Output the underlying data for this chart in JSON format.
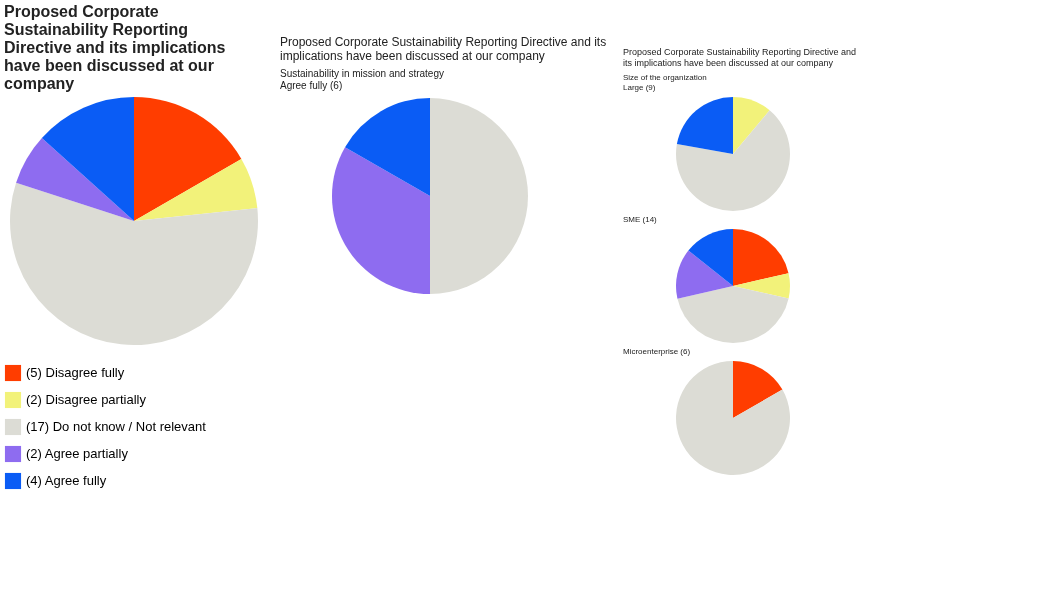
{
  "chart_data": [
    {
      "type": "pie",
      "title": "Proposed Corporate Sustainability Reporting Directive and its implications have been discussed at our company",
      "categories": [
        "(5) Disagree fully",
        "(2) Disagree partially",
        "(17) Do not know / Not relevant",
        "(2) Agree partially",
        "(4) Agree fully"
      ],
      "values": [
        5,
        2,
        17,
        2,
        4
      ],
      "colors": [
        "#ff3d00",
        "#f2f27a",
        "#dcdcd5",
        "#8e6cf0",
        "#0a5cf5"
      ],
      "legend": "bottom"
    },
    {
      "type": "pie",
      "title": "Proposed Corporate Sustainability Reporting Directive and its implications have been discussed at our company",
      "subtitle": "Sustainability in mission and strategy",
      "annotations": [
        "Agree fully (6)"
      ],
      "categories": [
        null,
        null,
        null
      ],
      "values": [
        50,
        33.3,
        16.7
      ],
      "colors": [
        "#dcdcd5",
        "#8e6cf0",
        "#0a5cf5"
      ]
    },
    {
      "type": "pie",
      "title": "Proposed Corporate Sustainability Reporting Directive and its implications have been discussed at our company",
      "subtitle": "Size of the organization",
      "annotations": [
        "Large (9)"
      ],
      "categories": [
        null,
        null,
        null
      ],
      "values": [
        11.1,
        66.7,
        22.2
      ],
      "colors": [
        "#f2f27a",
        "#dcdcd5",
        "#0a5cf5"
      ]
    },
    {
      "type": "pie",
      "title": "SME (14)",
      "categories": [
        null,
        null,
        null,
        null,
        null
      ],
      "values": [
        21.4,
        7.1,
        42.9,
        14.3,
        14.3
      ],
      "colors": [
        "#ff3d00",
        "#f2f27a",
        "#dcdcd5",
        "#8e6cf0",
        "#0a5cf5"
      ]
    },
    {
      "type": "pie",
      "title": "Microenterprise (6)",
      "categories": [
        null,
        null
      ],
      "values": [
        16.7,
        83.3
      ],
      "colors": [
        "#ff3d00",
        "#dcdcd5"
      ]
    }
  ]
}
